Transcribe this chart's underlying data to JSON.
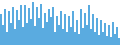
{
  "values": [
    70,
    45,
    80,
    30,
    75,
    50,
    85,
    35,
    78,
    55,
    90,
    40,
    88,
    48,
    82,
    58,
    95,
    42,
    85,
    60,
    92,
    38,
    72,
    52,
    80,
    62,
    85,
    30,
    65,
    45,
    75,
    35,
    70,
    28,
    65,
    40,
    75,
    30,
    55,
    25,
    80,
    38,
    72,
    45,
    88,
    35,
    68,
    28,
    60,
    22,
    55,
    30,
    50,
    20,
    45,
    18,
    52,
    25,
    40,
    15
  ],
  "bar_color": "#5aabe0",
  "background_color": "#ffffff",
  "ylim_min": 0,
  "ylim_max": 100
}
